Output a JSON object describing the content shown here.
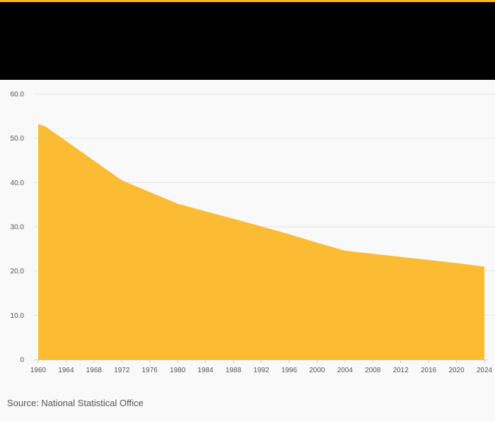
{
  "colors": {
    "accent": "#f6b51e",
    "header": "#000000",
    "area_fill": "#fbbc33",
    "background": "#f9f9f9"
  },
  "chart_data": {
    "type": "area",
    "x": [
      1960,
      1961,
      1972,
      1980,
      1984,
      1988,
      1992,
      1996,
      2000,
      2004,
      2008,
      2012,
      2016,
      2020,
      2024
    ],
    "series": [
      {
        "values": [
          53.2,
          52.7,
          40.5,
          35.2,
          33.5,
          31.8,
          30.1,
          28.3,
          26.4,
          24.6,
          23.9,
          23.2,
          22.5,
          21.8,
          21.0
        ]
      }
    ],
    "ylim": [
      0,
      60
    ],
    "xlim": [
      1960,
      2024
    ],
    "y_ticks": [
      "60.0",
      "50.0",
      "40.0",
      "30.0",
      "20.0",
      "10.0",
      "0"
    ],
    "y_tick_values": [
      60,
      50,
      40,
      30,
      20,
      10,
      0
    ],
    "x_ticks": [
      "1960",
      "1964",
      "1968",
      "1972",
      "1976",
      "1980",
      "1984",
      "1988",
      "1992",
      "1996",
      "2000",
      "2004",
      "2008",
      "2012",
      "2016",
      "2020",
      "2024"
    ],
    "x_tick_values": [
      1960,
      1964,
      1968,
      1972,
      1976,
      1980,
      1984,
      1988,
      1992,
      1996,
      2000,
      2004,
      2008,
      2012,
      2016,
      2020,
      2024
    ],
    "grid": true
  },
  "source_text": "Source: National Statistical Office"
}
